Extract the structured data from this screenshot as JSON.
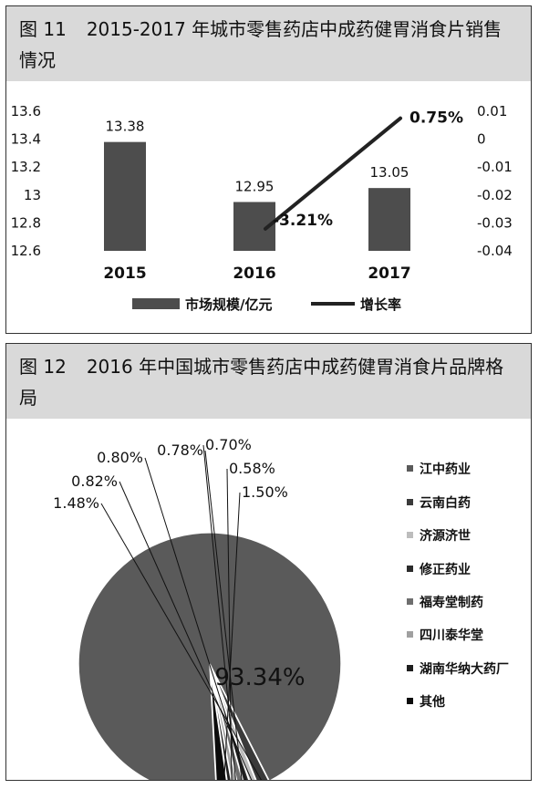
{
  "figure11": {
    "number": "图 11",
    "title": "2015-2017 年城市零售药店中成药健胃消食片销售情况"
  },
  "figure12": {
    "number": "图 12",
    "title": "2016 年中国城市零售药店中成药健胃消食片品牌格局"
  },
  "colors": {
    "bar": "#4d4d4d",
    "line": "#222222",
    "header_bg": "#d9d9d9"
  },
  "chart_data": [
    {
      "type": "bar",
      "title": "2015-2017 年城市零售药店中成药健胃消食片销售情况",
      "categories": [
        "2015",
        "2016",
        "2017"
      ],
      "series": [
        {
          "name": "市场规模/亿元",
          "type": "bar",
          "axis": "left",
          "values": [
            13.38,
            12.95,
            13.05
          ],
          "labels": [
            "13.38",
            "12.95",
            "13.05"
          ]
        },
        {
          "name": "增长率",
          "type": "line",
          "axis": "right",
          "values": [
            null,
            -0.0321,
            0.0075
          ],
          "labels": [
            "",
            "-3.21%",
            "0.75%"
          ]
        }
      ],
      "ylim": [
        12.6,
        13.6
      ],
      "yticks": [
        "12.6",
        "12.8",
        "13",
        "13.2",
        "13.4",
        "13.6"
      ],
      "ylim_right": [
        -0.04,
        0.01
      ],
      "yticks_right": [
        "-0.04",
        "-0.03",
        "-0.02",
        "-0.01",
        "0",
        "0.01"
      ],
      "legend_position": "bottom",
      "grid": false
    },
    {
      "type": "pie",
      "title": "2016 年中国城市零售药店中成药健胃消食片品牌格局",
      "labels": [
        "江中药业",
        "云南白药",
        "济源济世",
        "修正药业",
        "福寿堂制药",
        "四川泰华堂",
        "湖南华纳大药厂",
        "其他"
      ],
      "values": [
        93.34,
        1.48,
        0.82,
        0.8,
        0.78,
        0.7,
        0.58,
        1.5
      ],
      "value_labels": [
        "93.34%",
        "1.48%",
        "0.82%",
        "0.80%",
        "0.78%",
        "0.70%",
        "0.58%",
        "1.50%"
      ],
      "colors": [
        "#5a5a5a",
        "#3a3a3a",
        "#bdbdbd",
        "#2b2b2b",
        "#6e6e6e",
        "#a0a0a0",
        "#1e1e1e",
        "#0c0c0c"
      ],
      "legend_position": "right"
    }
  ]
}
